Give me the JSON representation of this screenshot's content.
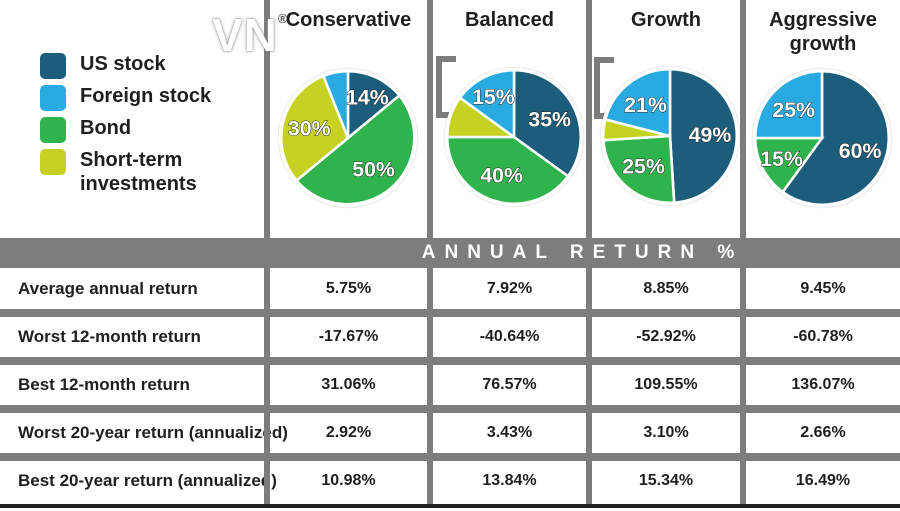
{
  "logo": {
    "text": "VN",
    "registered": "®"
  },
  "legend": {
    "items": [
      {
        "label": "US stock",
        "color": "#1b5d7b"
      },
      {
        "label": "Foreign stock",
        "color": "#29abe2"
      },
      {
        "label": "Bond",
        "color": "#2fb34c"
      },
      {
        "label": "Short-term investments",
        "color": "#c5d222"
      }
    ]
  },
  "chart_data": [
    {
      "type": "pie",
      "title": "Conservative",
      "slices": [
        {
          "label": "US stock",
          "value": 14,
          "color": "#1b5d7b",
          "show_label": true
        },
        {
          "label": "Bond",
          "value": 50,
          "color": "#2fb34c",
          "show_label": true
        },
        {
          "label": "Short-term investments",
          "value": 30,
          "color": "#c5d222",
          "show_label": true
        },
        {
          "label": "Foreign stock",
          "value": 6,
          "color": "#29abe2",
          "show_label": false
        }
      ]
    },
    {
      "type": "pie",
      "title": "Balanced",
      "slices": [
        {
          "label": "US stock",
          "value": 35,
          "color": "#1b5d7b",
          "show_label": true
        },
        {
          "label": "Bond",
          "value": 40,
          "color": "#2fb34c",
          "show_label": true
        },
        {
          "label": "Short-term investments",
          "value": 10,
          "color": "#c5d222",
          "show_label": false
        },
        {
          "label": "Foreign stock",
          "value": 15,
          "color": "#29abe2",
          "show_label": true
        }
      ]
    },
    {
      "type": "pie",
      "title": "Growth",
      "slices": [
        {
          "label": "US stock",
          "value": 49,
          "color": "#1b5d7b",
          "show_label": true
        },
        {
          "label": "Bond",
          "value": 25,
          "color": "#2fb34c",
          "show_label": true
        },
        {
          "label": "Short-term investments",
          "value": 5,
          "color": "#c5d222",
          "show_label": false
        },
        {
          "label": "Foreign stock",
          "value": 21,
          "color": "#29abe2",
          "show_label": true
        }
      ]
    },
    {
      "type": "pie",
      "title": "Aggressive growth",
      "slices": [
        {
          "label": "US stock",
          "value": 60,
          "color": "#1b5d7b",
          "show_label": true
        },
        {
          "label": "Bond",
          "value": 15,
          "color": "#2fb34c",
          "show_label": true
        },
        {
          "label": "Foreign stock",
          "value": 25,
          "color": "#29abe2",
          "show_label": true
        }
      ]
    }
  ],
  "annual_return_band": {
    "title": "A N N U A L   R E T U R N   %",
    "display": "ANNUAL RETURN %"
  },
  "table": {
    "rows": [
      {
        "label": "Average annual return",
        "values": [
          "5.75%",
          "7.92%",
          "8.85%",
          "9.45%"
        ]
      },
      {
        "label": "Worst 12-month return",
        "values": [
          "-17.67%",
          "-40.64%",
          "-52.92%",
          "-60.78%"
        ]
      },
      {
        "label": "Best 12-month return",
        "values": [
          "31.06%",
          "76.57%",
          "109.55%",
          "136.07%"
        ]
      },
      {
        "label": "Worst 20-year return (annualized)",
        "values": [
          "2.92%",
          "3.43%",
          "3.10%",
          "2.66%"
        ]
      },
      {
        "label": "Best 20-year return (annualized)",
        "values": [
          "10.98%",
          "13.84%",
          "15.34%",
          "16.49%"
        ]
      }
    ]
  },
  "colors": {
    "grid_gray": "#7d7d7d",
    "text_dark": "#1f1f1f",
    "pie_label_text": "#ffffff"
  }
}
